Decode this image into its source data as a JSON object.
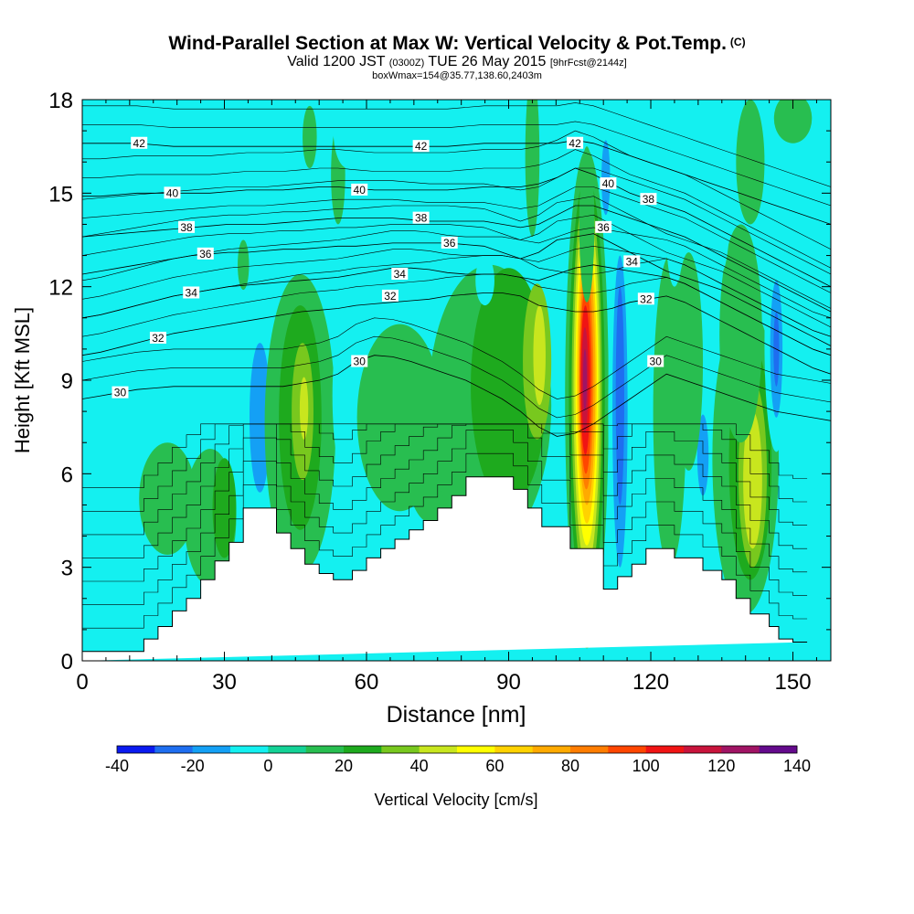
{
  "title": {
    "main": "Wind-Parallel Section at Max W: Vertical Velocity & Pot.Temp.",
    "copyright": "(C)",
    "valid_prefix": "Valid 1200 JST",
    "valid_zulu": "(0300Z)",
    "valid_date": "TUE 26 May 2015",
    "forecast": "[9hrFcst@2144z]",
    "box_info": "boxWmax=154@35.77,138.60,2403m"
  },
  "chart_data": {
    "type": "heatmap",
    "xlabel": "Distance [nm]",
    "ylabel": "Height [Kft MSL]",
    "xlim": [
      0,
      158
    ],
    "ylim": [
      0,
      18
    ],
    "x_ticks": [
      "0",
      "30",
      "60",
      "90",
      "120",
      "150"
    ],
    "y_ticks": [
      "0",
      "3",
      "6",
      "9",
      "12",
      "15",
      "18"
    ],
    "colorbar": {
      "label": "Vertical Velocity [cm/s]",
      "ticks": [
        "-40",
        "-20",
        "0",
        "20",
        "40",
        "60",
        "80",
        "100",
        "120",
        "140"
      ],
      "levels": [
        -40,
        -30,
        -20,
        -10,
        0,
        10,
        20,
        30,
        40,
        50,
        60,
        70,
        80,
        90,
        100,
        110,
        120,
        130,
        140
      ],
      "colors": [
        "#0a1af0",
        "#1e6ef0",
        "#14a0f5",
        "#14f0f0",
        "#14d296",
        "#28be50",
        "#1eaa1e",
        "#78c81e",
        "#c8e61e",
        "#ffff00",
        "#ffd200",
        "#ffaa00",
        "#ff7d00",
        "#ff4600",
        "#f01414",
        "#c8143c",
        "#a01464",
        "#640a8c"
      ]
    },
    "background_color": "#14f0f0",
    "terrain_profile": {
      "x": [
        0,
        13,
        13,
        16,
        16,
        19,
        19,
        22,
        22,
        25,
        25,
        28,
        28,
        31,
        31,
        34,
        34,
        41,
        41,
        44,
        44,
        47,
        47,
        50,
        50,
        53,
        53,
        57,
        57,
        60,
        60,
        63,
        63,
        66,
        66,
        69,
        69,
        72,
        72,
        75,
        75,
        78,
        78,
        81,
        81,
        84,
        84,
        91,
        91,
        94,
        94,
        97,
        97,
        103,
        103,
        110,
        110,
        113,
        113,
        116,
        116,
        119,
        119,
        125,
        125,
        131,
        131,
        135,
        135,
        138,
        138,
        141,
        141,
        145,
        145,
        147,
        147,
        150,
        150,
        153,
        153,
        158
      ],
      "height_kft": [
        0.3,
        0.3,
        0.7,
        0.7,
        1.1,
        1.1,
        1.6,
        1.6,
        2.0,
        2.0,
        2.6,
        2.6,
        3.2,
        3.2,
        3.8,
        3.8,
        4.9,
        4.9,
        4.1,
        4.1,
        3.6,
        3.6,
        3.1,
        3.1,
        2.8,
        2.8,
        2.6,
        2.6,
        2.9,
        2.9,
        3.3,
        3.3,
        3.6,
        3.6,
        3.9,
        3.9,
        4.2,
        4.2,
        4.5,
        4.5,
        4.9,
        4.9,
        5.3,
        5.3,
        5.9,
        5.9,
        5.9,
        5.9,
        5.5,
        5.5,
        4.9,
        4.9,
        4.3,
        4.3,
        3.6,
        3.6,
        2.3,
        2.3,
        2.7,
        2.7,
        3.1,
        3.1,
        3.6,
        3.6,
        3.3,
        3.3,
        2.9,
        2.9,
        2.6,
        2.6,
        2.0,
        2.0,
        1.5,
        1.5,
        1.1,
        1.1,
        0.7,
        0.7,
        0.6,
        0.6,
        0.6
      ]
    },
    "velocity_features": [
      {
        "x": 38.5,
        "y": 7.5,
        "rx": 6.5,
        "ry": 4.6,
        "w": -10
      },
      {
        "x": 37.5,
        "y": 7.8,
        "rx": 2.2,
        "ry": 2.4,
        "w": -20
      },
      {
        "x": 46,
        "y": 7.6,
        "rx": 7.5,
        "ry": 4.8,
        "w": 10
      },
      {
        "x": 46,
        "y": 7.8,
        "rx": 4.5,
        "ry": 3.6,
        "w": 20
      },
      {
        "x": 46.5,
        "y": 8.0,
        "rx": 2.3,
        "ry": 2.2,
        "w": 30
      },
      {
        "x": 46.8,
        "y": 8.1,
        "rx": 0.9,
        "ry": 1.0,
        "w": 40
      },
      {
        "x": 56,
        "y": 8.5,
        "rx": 3.2,
        "ry": 2.8,
        "w": -10
      },
      {
        "x": 74,
        "y": 5.8,
        "rx": 5.0,
        "ry": 1.4,
        "w": 10
      },
      {
        "x": 86,
        "y": 8.2,
        "rx": 13.0,
        "ry": 4.5,
        "w": 10
      },
      {
        "x": 90,
        "y": 8.8,
        "rx": 8.0,
        "ry": 3.8,
        "w": 20
      },
      {
        "x": 96,
        "y": 9.6,
        "rx": 3.0,
        "ry": 2.5,
        "w": 30
      },
      {
        "x": 96.5,
        "y": 9.8,
        "rx": 1.3,
        "ry": 1.6,
        "w": 40
      },
      {
        "x": 103,
        "y": 10.5,
        "rx": 2.0,
        "ry": 4.5,
        "w": -10
      },
      {
        "x": 88,
        "y": 17.0,
        "rx": 2.0,
        "ry": 1.5,
        "w": -10
      },
      {
        "x": 95,
        "y": 16.2,
        "rx": 1.5,
        "ry": 2.6,
        "w": 10
      },
      {
        "x": 85,
        "y": 12.2,
        "rx": 2.0,
        "ry": 0.8,
        "w": -10
      },
      {
        "x": 106.5,
        "y": 8.4,
        "rx": 4.6,
        "ry": 8.0,
        "w": 10
      },
      {
        "x": 106.5,
        "y": 8.6,
        "rx": 3.8,
        "ry": 7.0,
        "w": 20
      },
      {
        "x": 106.5,
        "y": 8.7,
        "rx": 3.2,
        "ry": 6.4,
        "w": 30
      },
      {
        "x": 106.5,
        "y": 8.8,
        "rx": 2.8,
        "ry": 5.8,
        "w": 40
      },
      {
        "x": 106.5,
        "y": 8.9,
        "rx": 2.4,
        "ry": 5.2,
        "w": 50
      },
      {
        "x": 106.5,
        "y": 9.0,
        "rx": 2.1,
        "ry": 4.6,
        "w": 60
      },
      {
        "x": 106.5,
        "y": 9.0,
        "rx": 1.8,
        "ry": 4.0,
        "w": 70
      },
      {
        "x": 106.4,
        "y": 9.0,
        "rx": 1.5,
        "ry": 3.5,
        "w": 80
      },
      {
        "x": 106.3,
        "y": 9.0,
        "rx": 1.25,
        "ry": 3.0,
        "w": 90
      },
      {
        "x": 106.2,
        "y": 9.0,
        "rx": 1.0,
        "ry": 2.4,
        "w": 100
      },
      {
        "x": 106.1,
        "y": 9.0,
        "rx": 0.7,
        "ry": 1.7,
        "w": 110
      },
      {
        "x": 106.1,
        "y": 9.0,
        "rx": 0.4,
        "ry": 1.0,
        "w": 120
      },
      {
        "x": 106.5,
        "y": 14.0,
        "rx": 1.6,
        "ry": 2.5,
        "w": 10
      },
      {
        "x": 113.5,
        "y": 8.0,
        "rx": 2.5,
        "ry": 6.0,
        "w": -10
      },
      {
        "x": 113.5,
        "y": 8.0,
        "rx": 1.6,
        "ry": 5.0,
        "w": -20
      },
      {
        "x": 113.5,
        "y": 8.5,
        "rx": 0.9,
        "ry": 3.5,
        "w": -30
      },
      {
        "x": 111.5,
        "y": 15.8,
        "rx": 1.6,
        "ry": 2.2,
        "w": -10
      },
      {
        "x": 110.5,
        "y": 15.5,
        "rx": 0.9,
        "ry": 1.2,
        "w": -20
      },
      {
        "x": 124,
        "y": 8.0,
        "rx": 3.5,
        "ry": 5.0,
        "w": 10
      },
      {
        "x": 131,
        "y": 6.8,
        "rx": 2.5,
        "ry": 2.6,
        "w": -10
      },
      {
        "x": 131,
        "y": 6.6,
        "rx": 1.2,
        "ry": 1.3,
        "w": -20
      },
      {
        "x": 128,
        "y": 9.6,
        "rx": 3.0,
        "ry": 3.5,
        "w": 10
      },
      {
        "x": 140,
        "y": 6.5,
        "rx": 7.0,
        "ry": 5.0,
        "w": 10
      },
      {
        "x": 141,
        "y": 6.4,
        "rx": 4.5,
        "ry": 3.8,
        "w": 20
      },
      {
        "x": 141.5,
        "y": 6.0,
        "rx": 3.0,
        "ry": 3.0,
        "w": 30
      },
      {
        "x": 141.5,
        "y": 5.8,
        "rx": 2.0,
        "ry": 2.2,
        "w": 40
      },
      {
        "x": 139,
        "y": 10.5,
        "rx": 4.5,
        "ry": 3.5,
        "w": 10
      },
      {
        "x": 146.5,
        "y": 10.2,
        "rx": 2.5,
        "ry": 3.5,
        "w": -10
      },
      {
        "x": 146.5,
        "y": 10.0,
        "rx": 1.3,
        "ry": 2.2,
        "w": -20
      },
      {
        "x": 146.5,
        "y": 10.0,
        "rx": 0.6,
        "ry": 1.2,
        "w": -30
      },
      {
        "x": 154,
        "y": 7.5,
        "rx": 3.5,
        "ry": 2.0,
        "w": -10
      },
      {
        "x": 158,
        "y": 3.2,
        "rx": 3.0,
        "ry": 2.5,
        "w": -10
      },
      {
        "x": 18,
        "y": 5.2,
        "rx": 6.0,
        "ry": 1.8,
        "w": 10
      },
      {
        "x": 27,
        "y": 4.6,
        "rx": 5.5,
        "ry": 2.2,
        "w": 10
      },
      {
        "x": 30,
        "y": 4.9,
        "rx": 2.5,
        "ry": 1.6,
        "w": 20
      },
      {
        "x": 34,
        "y": 12.7,
        "rx": 1.2,
        "ry": 0.8,
        "w": 10
      },
      {
        "x": 54,
        "y": 15.6,
        "rx": 1.5,
        "ry": 1.6,
        "w": 10
      },
      {
        "x": 56,
        "y": 17.0,
        "rx": 3.0,
        "ry": 1.2,
        "w": -10
      },
      {
        "x": 48,
        "y": 16.8,
        "rx": 1.5,
        "ry": 1.0,
        "w": 10
      },
      {
        "x": 71,
        "y": 17.6,
        "rx": 1.0,
        "ry": 1.0,
        "w": -10
      },
      {
        "x": 135,
        "y": 15.5,
        "rx": 2.0,
        "ry": 3.0,
        "w": -10
      },
      {
        "x": 141,
        "y": 16.0,
        "rx": 3.0,
        "ry": 2.0,
        "w": 10
      },
      {
        "x": 150,
        "y": 17.4,
        "rx": 4.0,
        "ry": 0.8,
        "w": 10
      },
      {
        "x": 125,
        "y": 14.0,
        "rx": 1.8,
        "ry": 2.0,
        "w": -10
      },
      {
        "x": 119,
        "y": 12.8,
        "rx": 1.2,
        "ry": 1.2,
        "w": -10
      },
      {
        "x": 67,
        "y": 7.8,
        "rx": 9.0,
        "ry": 3.0,
        "w": 10
      }
    ],
    "isentropes": [
      {
        "label": "30",
        "label_x": 8,
        "y": [
          8.4,
          8.5,
          8.6,
          8.7,
          8.75,
          8.8,
          8.8,
          8.8,
          8.8,
          8.8,
          8.8,
          8.8,
          8.9,
          9.0,
          9.2,
          9.6,
          9.8,
          9.75,
          9.6,
          9.4,
          9.2,
          9.0,
          8.7,
          8.4,
          8.0,
          7.5,
          7.2,
          7.3,
          7.6,
          8.0,
          8.4,
          8.8,
          9.2,
          9.0,
          8.8,
          8.6,
          8.4,
          8.2,
          8.0,
          7.9,
          7.8,
          7.7
        ]
      },
      {
        "label": "32",
        "label_x": 16,
        "y": [
          9.8,
          9.9,
          10.05,
          10.2,
          10.35,
          10.5,
          10.6,
          10.7,
          10.8,
          10.9,
          11.0,
          11.1,
          11.2,
          11.25,
          11.3,
          11.4,
          11.45,
          11.5,
          11.55,
          11.6,
          11.7,
          11.75,
          11.8,
          11.8,
          11.7,
          11.4,
          11.3,
          11.2,
          11.2,
          11.3,
          11.5,
          11.6,
          11.7,
          11.5,
          11.2,
          10.9,
          10.6,
          10.3,
          10.0,
          9.7,
          9.4,
          9.2
        ]
      },
      {
        "label": "34",
        "label_x": 23,
        "y": [
          11.0,
          11.1,
          11.25,
          11.4,
          11.55,
          11.7,
          11.8,
          11.9,
          12.0,
          12.05,
          12.1,
          12.15,
          12.2,
          12.25,
          12.3,
          12.4,
          12.5,
          12.6,
          12.6,
          12.55,
          12.45,
          12.4,
          12.4,
          12.4,
          12.3,
          12.2,
          12.4,
          12.6,
          12.7,
          12.6,
          12.5,
          12.4,
          12.3,
          12.1,
          11.8,
          11.5,
          11.2,
          10.9,
          10.6,
          10.3,
          10.0,
          9.8
        ]
      },
      {
        "label": "36",
        "label_x": 26,
        "y": [
          12.4,
          12.5,
          12.6,
          12.7,
          12.8,
          12.9,
          13.0,
          13.05,
          13.1,
          13.1,
          13.15,
          13.2,
          13.2,
          13.25,
          13.3,
          13.3,
          13.35,
          13.4,
          13.4,
          13.4,
          13.4,
          13.35,
          13.3,
          13.1,
          12.9,
          13.1,
          13.5,
          13.6,
          13.7,
          13.4,
          13.1,
          12.8,
          12.5,
          12.3,
          12.1,
          11.9,
          11.6,
          11.3,
          11.0,
          10.7,
          10.4,
          10.1
        ]
      },
      {
        "label": "38",
        "label_x": 22,
        "y": [
          13.6,
          13.65,
          13.7,
          13.75,
          13.8,
          13.85,
          13.9,
          13.95,
          14.0,
          14.0,
          14.0,
          14.05,
          14.1,
          14.15,
          14.2,
          14.2,
          14.2,
          14.2,
          14.15,
          14.1,
          14.1,
          14.1,
          14.1,
          14.0,
          13.9,
          14.0,
          14.3,
          14.6,
          14.6,
          14.4,
          14.2,
          14.0,
          13.8,
          13.6,
          13.3,
          13.0,
          12.7,
          12.4,
          12.1,
          11.8,
          11.5,
          11.2
        ]
      },
      {
        "label": "40",
        "label_x": 19,
        "y": [
          14.9,
          14.9,
          14.95,
          15.0,
          15.0,
          15.0,
          15.0,
          15.0,
          15.05,
          15.1,
          15.1,
          15.1,
          15.15,
          15.2,
          15.2,
          15.15,
          15.1,
          15.1,
          15.1,
          15.1,
          15.1,
          15.15,
          15.2,
          15.2,
          15.2,
          15.3,
          15.5,
          15.8,
          15.6,
          15.3,
          15.0,
          14.8,
          14.6,
          14.4,
          14.1,
          13.8,
          13.5,
          13.2,
          12.9,
          12.6,
          12.3,
          12.0
        ]
      },
      {
        "label": "42",
        "label_x": 12,
        "y": [
          16.6,
          16.6,
          16.6,
          16.6,
          16.55,
          16.5,
          16.5,
          16.5,
          16.5,
          16.5,
          16.5,
          16.5,
          16.5,
          16.5,
          16.5,
          16.5,
          16.5,
          16.5,
          16.5,
          16.5,
          16.5,
          16.55,
          16.6,
          16.6,
          16.6,
          16.6,
          16.6,
          16.7,
          16.6,
          16.4,
          16.2,
          16.0,
          15.8,
          15.6,
          15.4,
          15.2,
          15.0,
          14.8,
          14.6,
          14.4,
          14.2,
          14.0
        ]
      }
    ],
    "inline_labels": [
      {
        "text": "30",
        "x": 58.5,
        "y": 9.6
      },
      {
        "text": "32",
        "x": 65,
        "y": 11.7
      },
      {
        "text": "34",
        "x": 67,
        "y": 12.4
      },
      {
        "text": "36",
        "x": 77.5,
        "y": 13.4
      },
      {
        "text": "38",
        "x": 71.5,
        "y": 14.2
      },
      {
        "text": "40",
        "x": 58.5,
        "y": 15.1
      },
      {
        "text": "42",
        "x": 71.5,
        "y": 16.5
      },
      {
        "text": "42",
        "x": 104,
        "y": 16.6
      },
      {
        "text": "40",
        "x": 111,
        "y": 15.3
      },
      {
        "text": "38",
        "x": 119.5,
        "y": 14.8
      },
      {
        "text": "36",
        "x": 110,
        "y": 13.9
      },
      {
        "text": "34",
        "x": 116,
        "y": 12.8
      },
      {
        "text": "32",
        "x": 119,
        "y": 11.6
      },
      {
        "text": "30",
        "x": 121,
        "y": 9.6
      }
    ]
  }
}
